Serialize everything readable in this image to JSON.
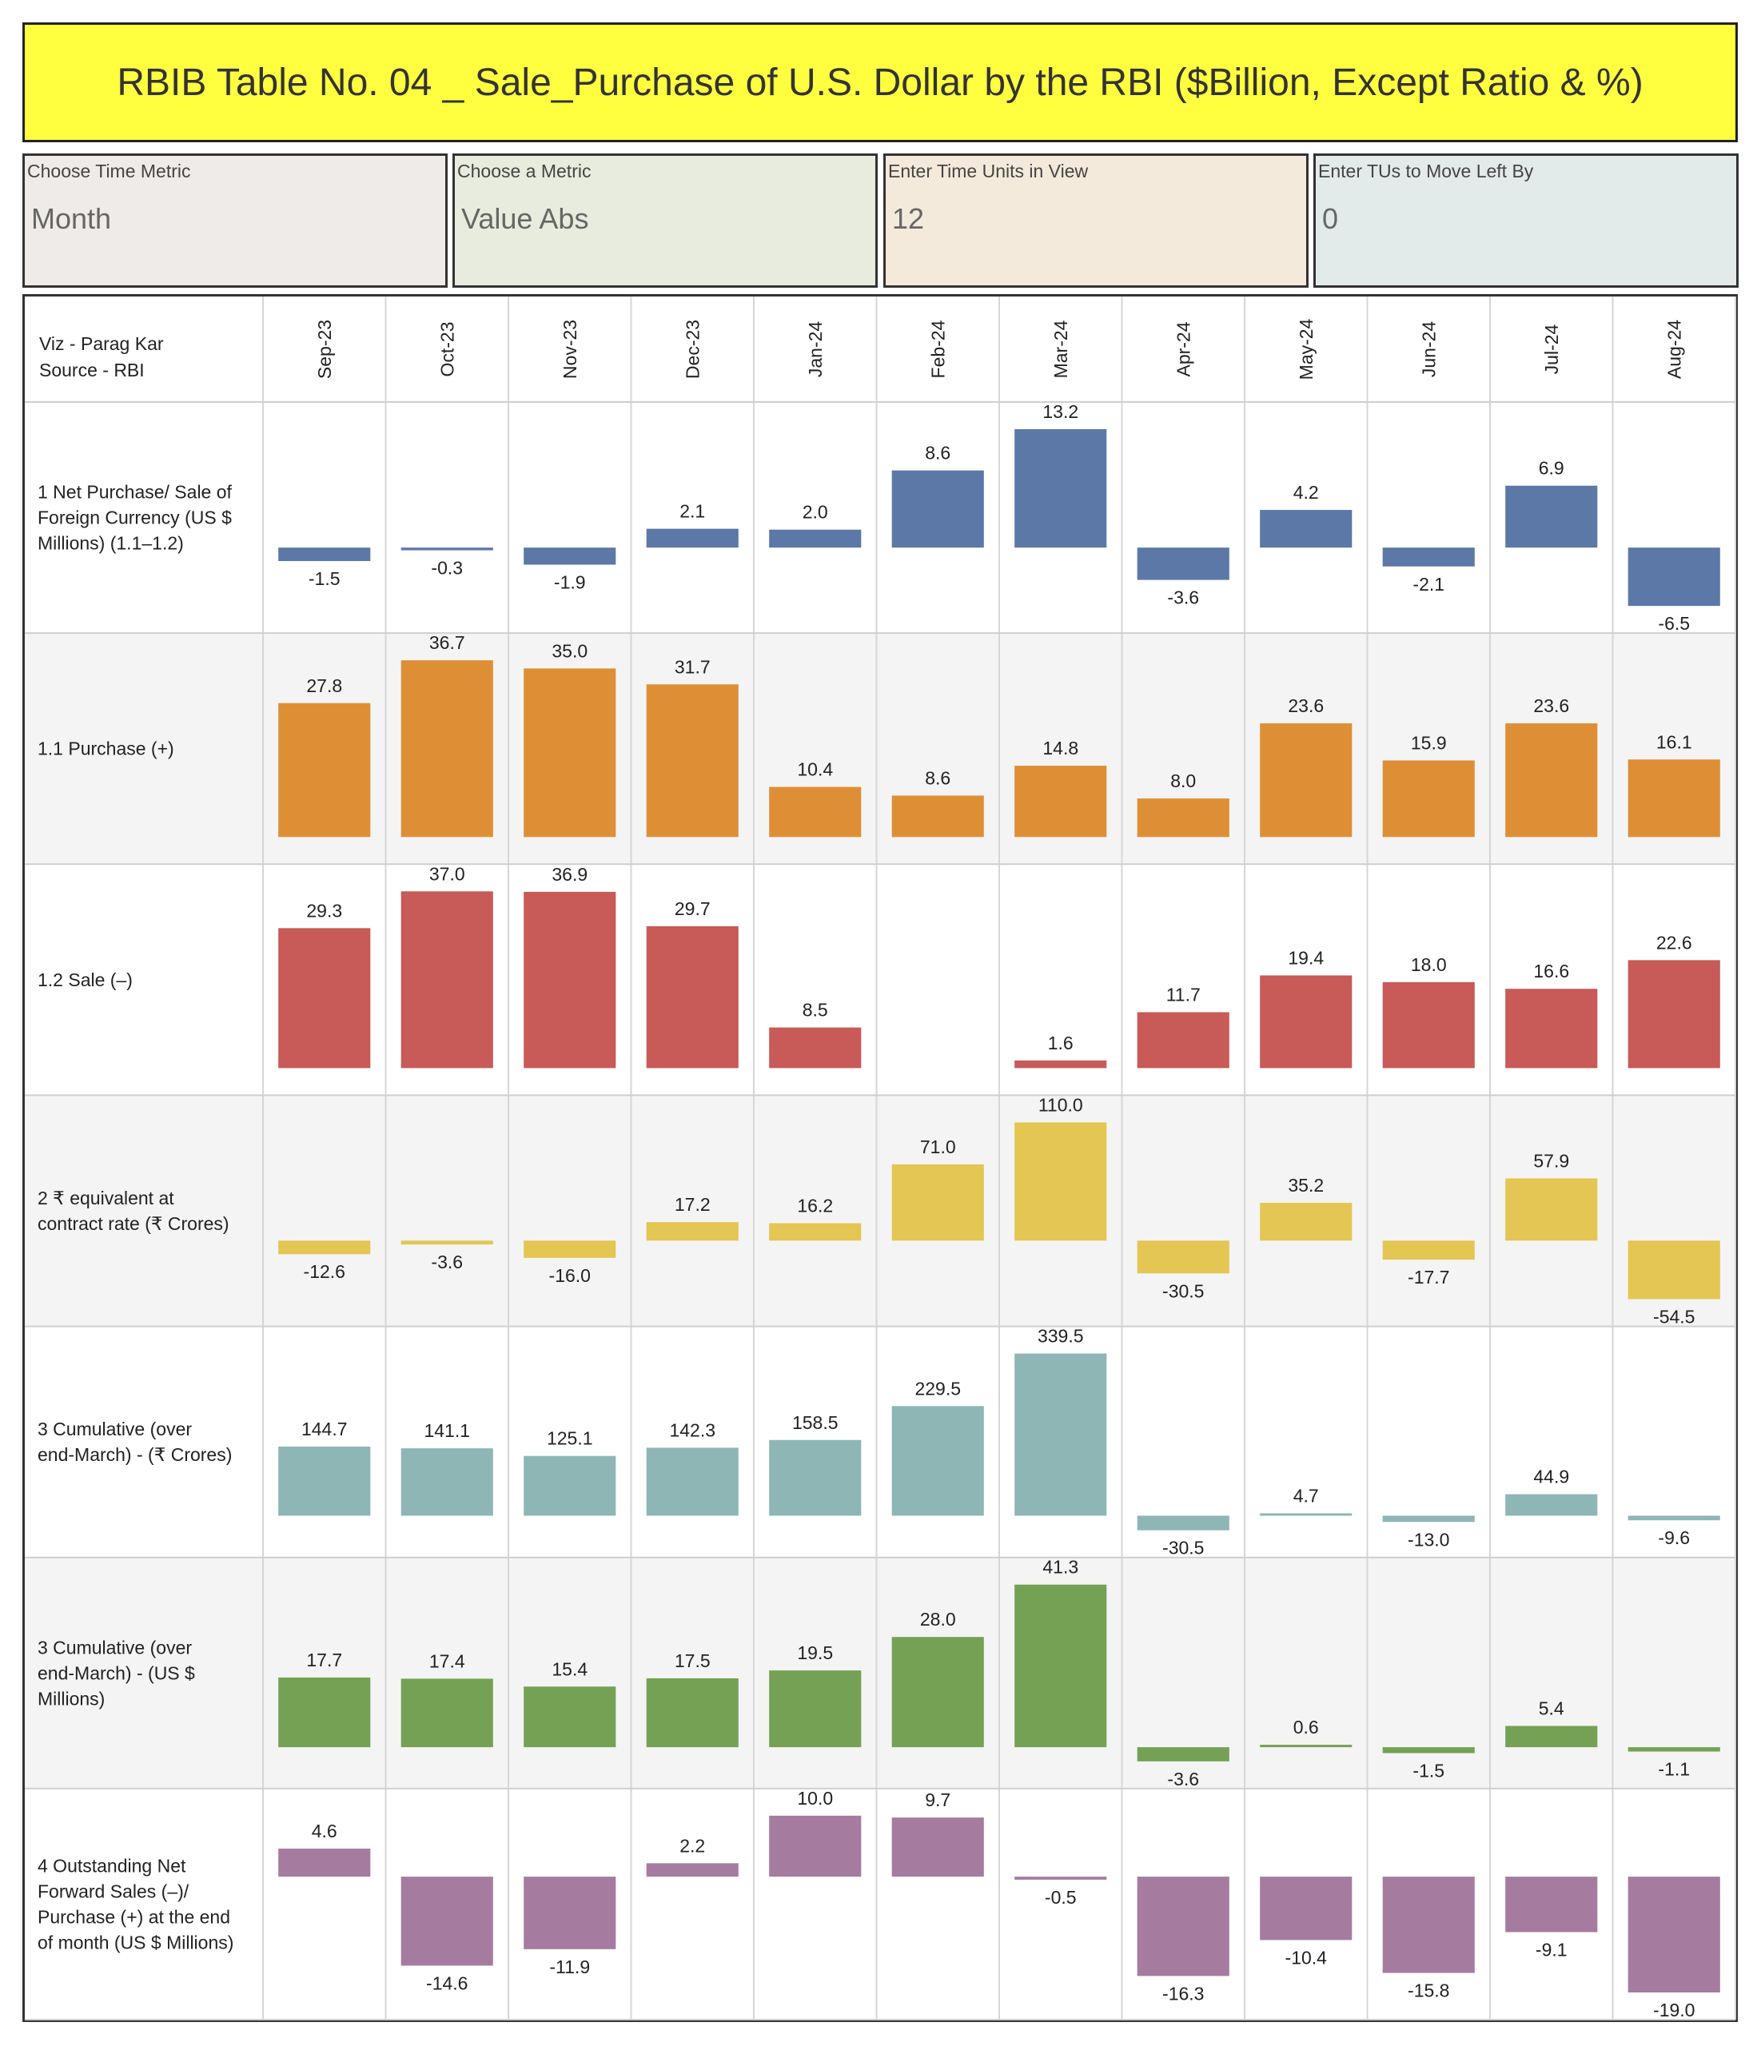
{
  "title": "RBIB Table No. 04 _ Sale_Purchase of U.S. Dollar by the RBI ($Billion, Except Ratio & %)",
  "controls": [
    {
      "label": "Choose Time Metric",
      "value": "Month",
      "bg": "#efebe8"
    },
    {
      "label": "Choose a Metric",
      "value": "Value Abs",
      "bg": "#e8ecdf"
    },
    {
      "label": "Enter Time Units in View",
      "value": "12",
      "bg": "#f4eadb"
    },
    {
      "label": "Enter TUs to Move Left By",
      "value": "0",
      "bg": "#e3ebea"
    }
  ],
  "header": {
    "line1": "Viz - Parag Kar",
    "line2": "Source - RBI"
  },
  "chart_data": {
    "type": "bar",
    "categories": [
      "Sep-23",
      "Oct-23",
      "Nov-23",
      "Dec-23",
      "Jan-24",
      "Feb-24",
      "Mar-24",
      "Apr-24",
      "May-24",
      "Jun-24",
      "Jul-24",
      "Aug-24"
    ],
    "series": [
      {
        "name": "1 Net Purchase/ Sale of Foreign Currency (US $ Millions) (1.1–1.2)",
        "label_lines": [
          "1 Net Purchase/ Sale of",
          "Foreign Currency (US $",
          "Millions) (1.1–1.2)"
        ],
        "color": "#5b78a7",
        "values": [
          -1.5,
          -0.3,
          -1.9,
          2.1,
          2.0,
          8.6,
          13.2,
          -3.6,
          4.2,
          -2.1,
          6.9,
          -6.5
        ]
      },
      {
        "name": "1.1 Purchase (+)",
        "label_lines": [
          "1.1 Purchase (+)"
        ],
        "color": "#de8f36",
        "values": [
          27.8,
          36.7,
          35.0,
          31.7,
          10.4,
          8.6,
          14.8,
          8.0,
          23.6,
          15.9,
          23.6,
          16.1
        ]
      },
      {
        "name": "1.2 Sale (–)",
        "label_lines": [
          "1.2 Sale (–)"
        ],
        "color": "#c85a57",
        "values": [
          29.3,
          37.0,
          36.9,
          29.7,
          8.5,
          null,
          1.6,
          11.7,
          19.4,
          18.0,
          16.6,
          22.6
        ]
      },
      {
        "name": "2 ₹ equivalent at contract rate (₹ Crores)",
        "label_lines": [
          "2 ₹ equivalent at",
          "contract rate (₹ Crores)"
        ],
        "color": "#e3c653",
        "values": [
          -12.6,
          -3.6,
          -16.0,
          17.2,
          16.2,
          71.0,
          110.0,
          -30.5,
          35.2,
          -17.7,
          57.9,
          -54.5
        ]
      },
      {
        "name": "3 Cumulative (over end-March) - (₹ Crores)",
        "label_lines": [
          "3 Cumulative (over",
          "end-March) - (₹ Crores)"
        ],
        "color": "#8eb6b4",
        "values": [
          144.7,
          141.1,
          125.1,
          142.3,
          158.5,
          229.5,
          339.5,
          -30.5,
          4.7,
          -13.0,
          44.9,
          -9.6
        ]
      },
      {
        "name": "3 Cumulative (over end-March) - (US $ Millions)",
        "label_lines": [
          "3 Cumulative (over",
          "end-March) - (US $",
          "Millions)"
        ],
        "color": "#74a154",
        "values": [
          17.7,
          17.4,
          15.4,
          17.5,
          19.5,
          28.0,
          41.3,
          -3.6,
          0.6,
          -1.5,
          5.4,
          -1.1
        ]
      },
      {
        "name": "4 Outstanding Net Forward Sales (–)/ Purchase (+) at the end of month (US $ Millions)",
        "label_lines": [
          "4 Outstanding Net",
          "Forward Sales (–)/",
          "Purchase (+) at the end",
          "of month (US $ Millions)"
        ],
        "color": "#a57c9f",
        "values": [
          4.6,
          -14.6,
          -11.9,
          2.2,
          10.0,
          9.7,
          -0.5,
          -16.3,
          -10.4,
          -15.8,
          -9.1,
          -19.0
        ]
      }
    ]
  }
}
